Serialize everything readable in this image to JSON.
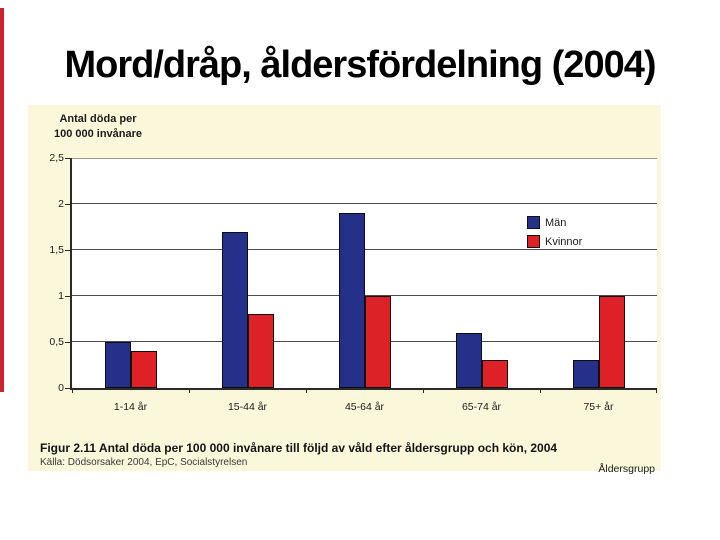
{
  "slide": {
    "title": "Mord/dråp, åldersfördelning (2004)"
  },
  "chart": {
    "y_axis_title_line1": "Antal döda per",
    "y_axis_title_line2": "100 000 invånare",
    "x_axis_title": "Åldersgrupp",
    "caption": "Figur 2.11  Antal döda per 100 000 invånare till följd av våld efter åldersgrupp och kön, 2004",
    "source": "Källa: Dödsorsaker 2004, EpC, Socialstyrelsen"
  },
  "chart_data": {
    "type": "bar",
    "title": "",
    "categories": [
      "1-14 år",
      "15-44 år",
      "45-64 år",
      "65-74 år",
      "75+ år"
    ],
    "series": [
      {
        "name": "Män",
        "color": "#24308a",
        "values": [
          0.5,
          1.7,
          1.9,
          0.6,
          0.3
        ]
      },
      {
        "name": "Kvinnor",
        "color": "#dd2127",
        "values": [
          0.4,
          0.8,
          1.0,
          0.3,
          1.0
        ]
      }
    ],
    "xlabel": "Åldersgrupp",
    "ylabel": "Antal döda per 100 000 invånare",
    "ylim": [
      0,
      2.5
    ],
    "yticks": [
      "0",
      "0,5",
      "1",
      "1,5",
      "2",
      "2,5"
    ],
    "ytick_values": [
      0,
      0.5,
      1,
      1.5,
      2,
      2.5
    ],
    "grid": true,
    "legend_position": "inside-right"
  },
  "colors": {
    "slide_background": "#ffffff",
    "chart_background": "#fbf7da",
    "plot_background": "#ffffff",
    "men_bar": "#24308a",
    "women_bar": "#dd2127",
    "gridline": "#4d4d4d",
    "edge_accent": "#cf2130",
    "title_text": "#000000"
  }
}
